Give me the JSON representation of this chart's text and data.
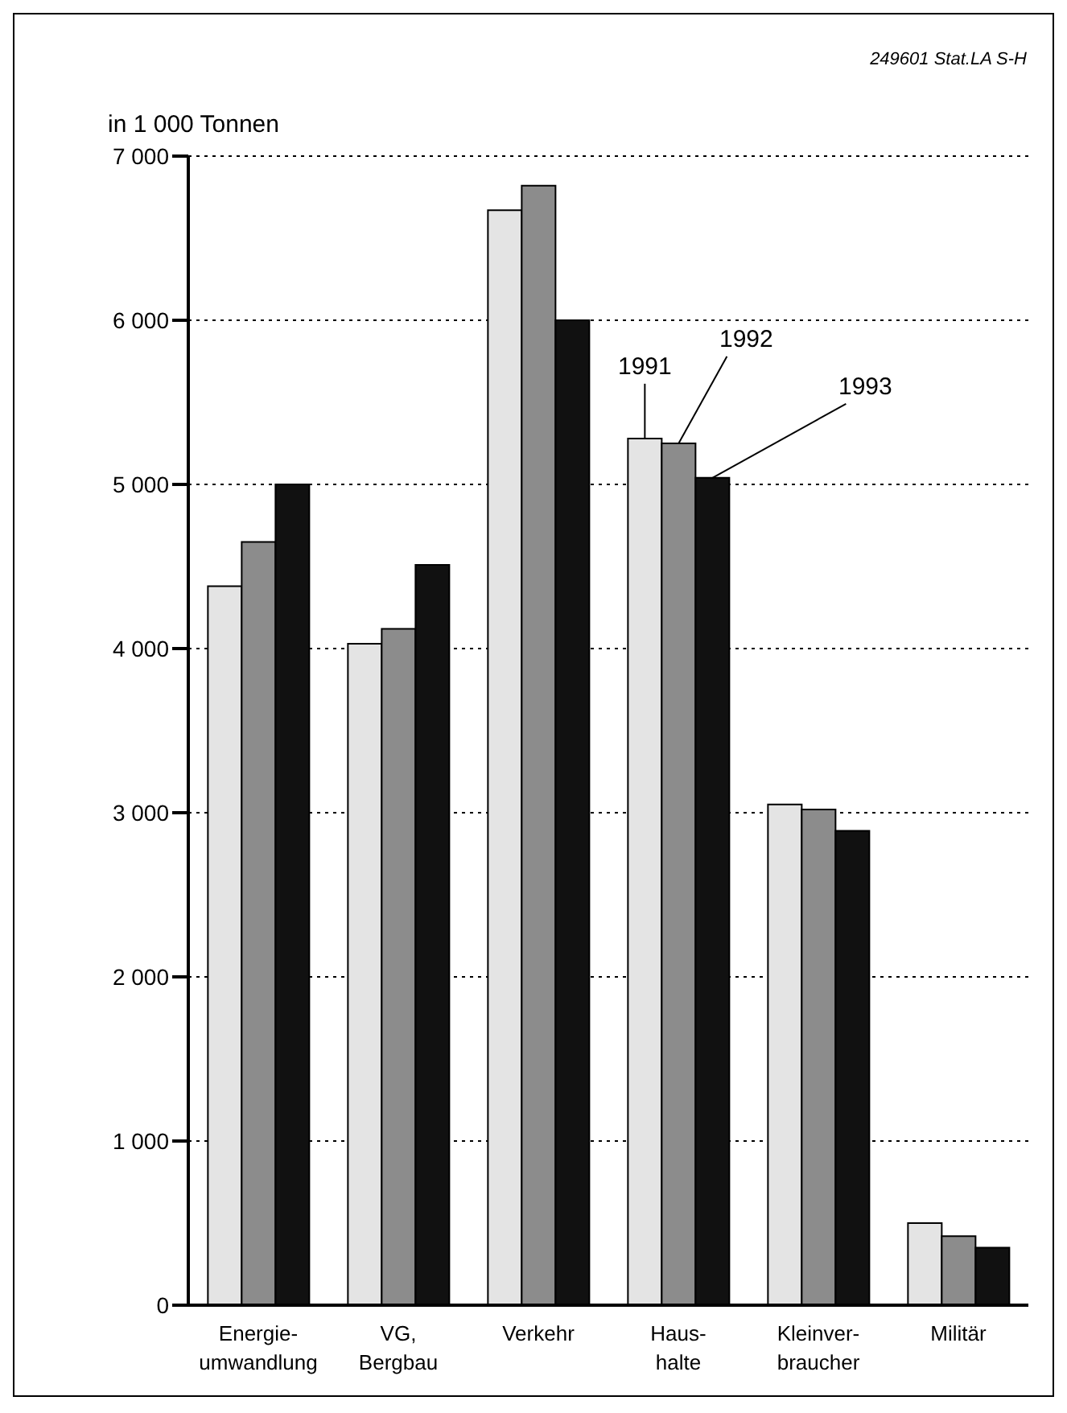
{
  "chart_data": {
    "type": "bar",
    "ylabel": "in 1 000 Tonnen",
    "annotations": [
      "249601 Stat.LA S-H"
    ],
    "categories": [
      "Energie-\numwandlung",
      "VG,\nBergbau",
      "Verkehr",
      "Haus-\nhalte",
      "Kleinver-\nbraucher",
      "Militär"
    ],
    "series": [
      {
        "name": "1991",
        "color": "#e4e4e4",
        "values": [
          4380,
          4030,
          6670,
          5280,
          3050,
          500
        ]
      },
      {
        "name": "1992",
        "color": "#8c8c8c",
        "values": [
          4650,
          4120,
          6820,
          5250,
          3020,
          420
        ]
      },
      {
        "name": "1993",
        "color": "#111111",
        "values": [
          5000,
          4510,
          6000,
          5040,
          2890,
          350
        ]
      }
    ],
    "ylim": [
      0,
      7000
    ],
    "yticks": [
      0,
      {
        "value": 1000,
        "label": "1 000"
      },
      {
        "value": 2000,
        "label": "2 000"
      },
      {
        "value": 3000,
        "label": "3 000"
      },
      {
        "value": 4000,
        "label": "4 000"
      },
      {
        "value": 5000,
        "label": "5 000"
      },
      {
        "value": 6000,
        "label": "6 000"
      },
      {
        "value": 7000,
        "label": "7 000"
      }
    ],
    "grid": "y",
    "legend": false
  }
}
